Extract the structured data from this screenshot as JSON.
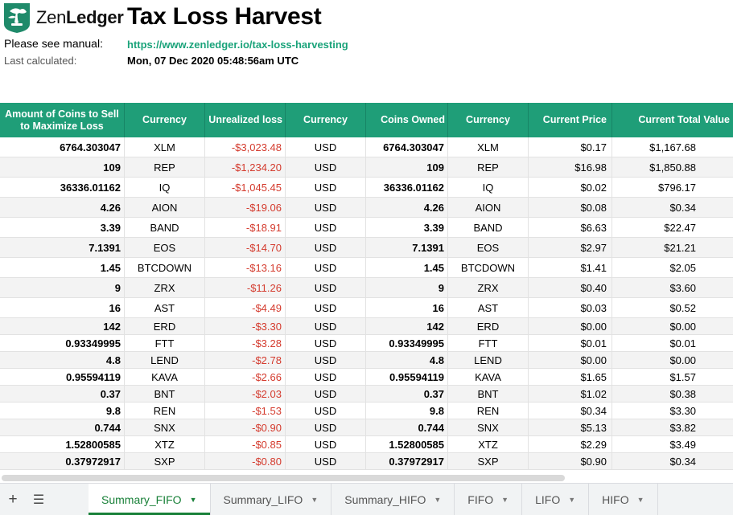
{
  "header": {
    "logo_text_light": "Zen",
    "logo_text_bold": "Ledger",
    "title": "Tax Loss Harvest",
    "manual_label": "Please see manual:",
    "manual_link": "https://www.zenledger.io/tax-loss-harvesting",
    "calc_label": "Last calculated:",
    "calc_value": "Mon, 07 Dec 2020 05:48:56am UTC"
  },
  "table": {
    "headers": [
      "Amount of Coins to Sell to Maximize Loss",
      "Currency",
      "Unrealized loss",
      "Currency",
      "Coins Owned",
      "Currency",
      "Current Price",
      "Current Total Value"
    ],
    "rows": [
      [
        "6764.303047",
        "XLM",
        "-$3,023.48",
        "USD",
        "6764.303047",
        "XLM",
        "$0.17",
        "$1,167.68"
      ],
      [
        "109",
        "REP",
        "-$1,234.20",
        "USD",
        "109",
        "REP",
        "$16.98",
        "$1,850.88"
      ],
      [
        "36336.01162",
        "IQ",
        "-$1,045.45",
        "USD",
        "36336.01162",
        "IQ",
        "$0.02",
        "$796.17"
      ],
      [
        "4.26",
        "AION",
        "-$19.06",
        "USD",
        "4.26",
        "AION",
        "$0.08",
        "$0.34"
      ],
      [
        "3.39",
        "BAND",
        "-$18.91",
        "USD",
        "3.39",
        "BAND",
        "$6.63",
        "$22.47"
      ],
      [
        "7.1391",
        "EOS",
        "-$14.70",
        "USD",
        "7.1391",
        "EOS",
        "$2.97",
        "$21.21"
      ],
      [
        "1.45",
        "BTCDOWN",
        "-$13.16",
        "USD",
        "1.45",
        "BTCDOWN",
        "$1.41",
        "$2.05"
      ],
      [
        "9",
        "ZRX",
        "-$11.26",
        "USD",
        "9",
        "ZRX",
        "$0.40",
        "$3.60"
      ],
      [
        "16",
        "AST",
        "-$4.49",
        "USD",
        "16",
        "AST",
        "$0.03",
        "$0.52"
      ],
      [
        "142",
        "ERD",
        "-$3.30",
        "USD",
        "142",
        "ERD",
        "$0.00",
        "$0.00"
      ],
      [
        "0.93349995",
        "FTT",
        "-$3.28",
        "USD",
        "0.93349995",
        "FTT",
        "$0.01",
        "$0.01"
      ],
      [
        "4.8",
        "LEND",
        "-$2.78",
        "USD",
        "4.8",
        "LEND",
        "$0.00",
        "$0.00"
      ],
      [
        "0.95594119",
        "KAVA",
        "-$2.66",
        "USD",
        "0.95594119",
        "KAVA",
        "$1.65",
        "$1.57"
      ],
      [
        "0.37",
        "BNT",
        "-$2.03",
        "USD",
        "0.37",
        "BNT",
        "$1.02",
        "$0.38"
      ],
      [
        "9.8",
        "REN",
        "-$1.53",
        "USD",
        "9.8",
        "REN",
        "$0.34",
        "$3.30"
      ],
      [
        "0.744",
        "SNX",
        "-$0.90",
        "USD",
        "0.744",
        "SNX",
        "$5.13",
        "$3.82"
      ],
      [
        "1.52800585",
        "XTZ",
        "-$0.85",
        "USD",
        "1.52800585",
        "XTZ",
        "$2.29",
        "$3.49"
      ],
      [
        "0.37972917",
        "SXP",
        "-$0.80",
        "USD",
        "0.37972917",
        "SXP",
        "$0.90",
        "$0.34"
      ]
    ]
  },
  "tabbar": {
    "add_icon": "plus-icon",
    "menu_icon": "list-icon",
    "tabs": [
      "Summary_FIFO",
      "Summary_LIFO",
      "Summary_HIFO",
      "FIFO",
      "LIFO",
      "HIFO"
    ],
    "active_tab": "Summary_FIFO"
  },
  "colors": {
    "header_green": "#1f9e78",
    "loss_red": "#d43b2e",
    "link_green": "#1aa37a",
    "active_tab_green": "#188038"
  }
}
